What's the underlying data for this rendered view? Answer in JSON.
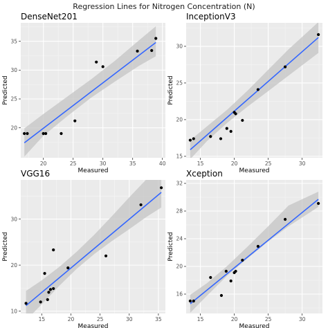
{
  "title": "Regression Lines for Nitrogen Concentration (N)",
  "colors": {
    "panel_bg": "#ebebeb",
    "grid_major": "#ffffff",
    "grid_minor": "#f5f5f5",
    "ribbon": "#c4c4c4",
    "line": "#3366ff",
    "point": "#000000"
  },
  "chart_data": [
    {
      "type": "scatter",
      "title": "DenseNet201",
      "xlabel": "Measured",
      "ylabel": "Predicted",
      "xlim": [
        16.2,
        40.5
      ],
      "ylim": [
        14.8,
        38.2
      ],
      "xticks": [
        20,
        25,
        30,
        35,
        40
      ],
      "yticks": [
        20,
        25,
        30,
        35
      ],
      "grid": true,
      "points": [
        {
          "x": 16.8,
          "y": 19.0
        },
        {
          "x": 17.3,
          "y": 19.0
        },
        {
          "x": 20.0,
          "y": 19.0
        },
        {
          "x": 20.4,
          "y": 19.0
        },
        {
          "x": 23.0,
          "y": 19.0
        },
        {
          "x": 25.3,
          "y": 21.2
        },
        {
          "x": 28.9,
          "y": 31.4
        },
        {
          "x": 30.0,
          "y": 30.6
        },
        {
          "x": 35.8,
          "y": 33.3
        },
        {
          "x": 38.2,
          "y": 33.4
        },
        {
          "x": 38.9,
          "y": 35.5
        }
      ],
      "fit_line": {
        "x": [
          16.8,
          38.9
        ],
        "y": [
          17.4,
          34.8
        ]
      },
      "confidence_band": {
        "x": [
          16.8,
          20.0,
          24.0,
          28.0,
          32.0,
          36.0,
          38.9
        ],
        "lower": [
          15.0,
          18.6,
          22.0,
          25.2,
          28.0,
          30.7,
          32.4
        ],
        "upper": [
          19.9,
          22.4,
          25.4,
          28.4,
          31.6,
          35.1,
          37.6
        ]
      }
    },
    {
      "type": "scatter",
      "title": "InceptionV3",
      "xlabel": "Measured",
      "ylabel": "Predicted",
      "xlim": [
        12.9,
        33.0
      ],
      "ylim": [
        14.8,
        33.2
      ],
      "xticks": [
        15,
        20,
        25,
        30
      ],
      "yticks": [
        15,
        20,
        25,
        30
      ],
      "grid": true,
      "points": [
        {
          "x": 13.5,
          "y": 17.2
        },
        {
          "x": 14.0,
          "y": 17.4
        },
        {
          "x": 16.5,
          "y": 17.7
        },
        {
          "x": 18.0,
          "y": 17.4
        },
        {
          "x": 18.9,
          "y": 18.8
        },
        {
          "x": 19.5,
          "y": 18.4
        },
        {
          "x": 20.0,
          "y": 21.0
        },
        {
          "x": 20.2,
          "y": 20.8
        },
        {
          "x": 21.2,
          "y": 19.9
        },
        {
          "x": 23.5,
          "y": 24.1
        },
        {
          "x": 27.5,
          "y": 27.2
        },
        {
          "x": 32.4,
          "y": 31.6
        }
      ],
      "fit_line": {
        "x": [
          13.5,
          32.4
        ],
        "y": [
          15.9,
          31.2
        ]
      },
      "confidence_band": {
        "x": [
          13.5,
          16.0,
          19.0,
          22.0,
          25.0,
          28.0,
          32.4
        ],
        "lower": [
          14.6,
          17.1,
          19.6,
          21.8,
          23.9,
          26.0,
          29.1
        ],
        "upper": [
          17.2,
          19.1,
          21.4,
          24.0,
          26.8,
          29.6,
          33.3
        ]
      }
    },
    {
      "type": "scatter",
      "title": "VGG16",
      "xlabel": "Measured",
      "ylabel": "Predicted",
      "xlim": [
        11.4,
        36.2
      ],
      "ylim": [
        9.5,
        38.5
      ],
      "xticks": [
        15,
        20,
        25,
        30,
        35
      ],
      "yticks": [
        10,
        20,
        30
      ],
      "grid": true,
      "points": [
        {
          "x": 12.3,
          "y": 11.7
        },
        {
          "x": 14.8,
          "y": 12.0
        },
        {
          "x": 15.5,
          "y": 18.2
        },
        {
          "x": 16.0,
          "y": 12.5
        },
        {
          "x": 16.2,
          "y": 14.1
        },
        {
          "x": 16.5,
          "y": 14.7
        },
        {
          "x": 17.0,
          "y": 14.9
        },
        {
          "x": 17.0,
          "y": 23.3
        },
        {
          "x": 19.5,
          "y": 19.4
        },
        {
          "x": 26.0,
          "y": 22.0
        },
        {
          "x": 32.0,
          "y": 33.1
        },
        {
          "x": 35.5,
          "y": 36.8
        }
      ],
      "fit_line": {
        "x": [
          12.3,
          35.5
        ],
        "y": [
          11.2,
          35.8
        ]
      },
      "confidence_band": {
        "x": [
          12.3,
          15.0,
          18.0,
          21.0,
          24.0,
          27.0,
          30.0,
          33.0,
          35.5
        ],
        "lower": [
          8.0,
          11.5,
          15.5,
          19.2,
          22.4,
          25.2,
          27.8,
          30.5,
          32.5
        ],
        "upper": [
          14.4,
          16.7,
          19.6,
          22.9,
          26.6,
          30.6,
          34.7,
          38.7,
          42.0
        ]
      }
    },
    {
      "type": "scatter",
      "title": "Xception",
      "xlabel": "Measured",
      "ylabel": "Predicted",
      "xlim": [
        12.9,
        33.0
      ],
      "ylim": [
        13.2,
        32.5
      ],
      "xticks": [
        15,
        20,
        25,
        30
      ],
      "yticks": [
        16,
        20,
        24,
        28,
        32
      ],
      "grid": true,
      "points": [
        {
          "x": 13.5,
          "y": 15.0
        },
        {
          "x": 14.0,
          "y": 15.0
        },
        {
          "x": 16.5,
          "y": 18.4
        },
        {
          "x": 18.1,
          "y": 15.8
        },
        {
          "x": 18.8,
          "y": 19.3
        },
        {
          "x": 19.5,
          "y": 17.9
        },
        {
          "x": 20.0,
          "y": 19.1
        },
        {
          "x": 20.2,
          "y": 19.3
        },
        {
          "x": 21.2,
          "y": 20.9
        },
        {
          "x": 23.5,
          "y": 22.9
        },
        {
          "x": 27.5,
          "y": 26.8
        },
        {
          "x": 32.4,
          "y": 29.1
        }
      ],
      "fit_line": {
        "x": [
          13.5,
          32.4
        ],
        "y": [
          14.6,
          29.7
        ]
      },
      "confidence_band": {
        "x": [
          13.5,
          16.0,
          19.0,
          22.0,
          25.0,
          28.0,
          32.4
        ],
        "lower": [
          13.3,
          15.8,
          18.7,
          21.2,
          23.6,
          25.8,
          28.6
        ],
        "upper": [
          15.9,
          17.6,
          20.1,
          22.9,
          25.8,
          28.8,
          30.8
        ]
      }
    }
  ]
}
